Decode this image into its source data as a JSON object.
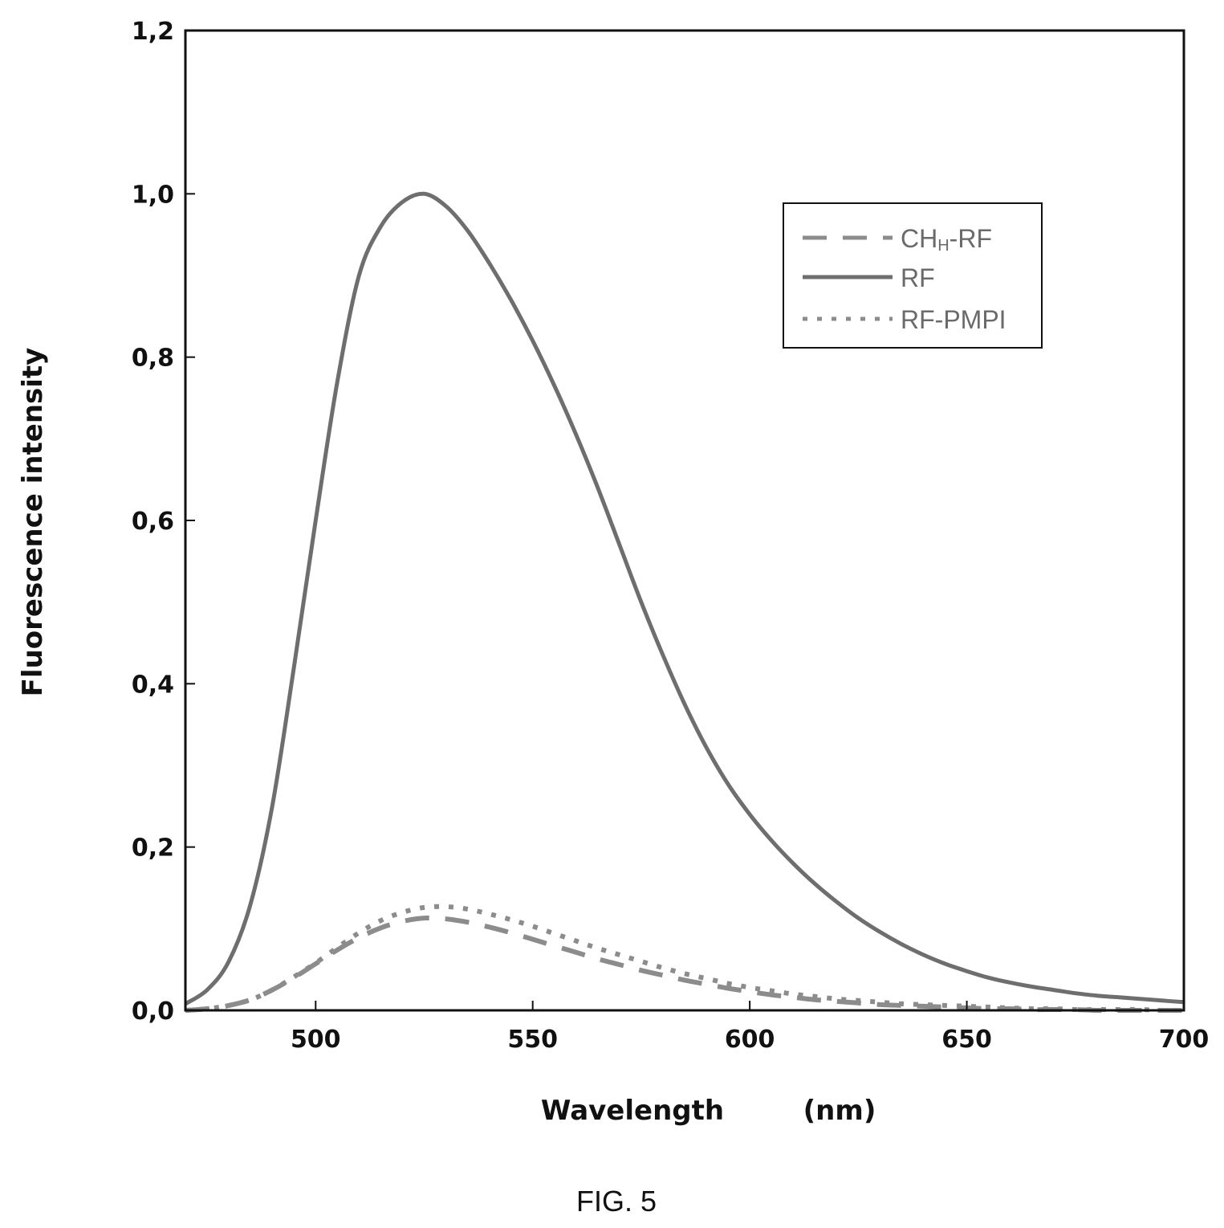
{
  "chart_data": {
    "type": "line",
    "xlabel": "Wavelength",
    "xunit": "(nm)",
    "ylabel": "Fluorescence intensity",
    "xlim": [
      470,
      700
    ],
    "ylim": [
      0,
      1.2
    ],
    "xticks": [
      500,
      550,
      600,
      650,
      700
    ],
    "yticks": [
      0,
      0.2,
      0.4,
      0.6,
      0.8,
      1.0,
      1.2
    ],
    "ytick_labels": [
      "0,0",
      "0,2",
      "0,4",
      "0,6",
      "0,8",
      "1,0",
      "1,2"
    ],
    "legend_position": "top-right",
    "grid": false,
    "series": [
      {
        "name": "CHH-RF",
        "name_main": "CH",
        "name_sub": "H",
        "name_tail": "-RF",
        "style": "dashed",
        "color": "#8c8c8c",
        "x": [
          470,
          475,
          480,
          485,
          490,
          495,
          500,
          505,
          510,
          515,
          520,
          525,
          530,
          535,
          540,
          545,
          550,
          555,
          560,
          565,
          570,
          575,
          580,
          585,
          590,
          595,
          600,
          605,
          610,
          615,
          620,
          625,
          630,
          635,
          640,
          645,
          650,
          655,
          660,
          665,
          670,
          675,
          680,
          685,
          690,
          695,
          700
        ],
        "y": [
          0.0,
          0.002,
          0.006,
          0.013,
          0.025,
          0.04,
          0.057,
          0.074,
          0.089,
          0.101,
          0.109,
          0.113,
          0.112,
          0.108,
          0.102,
          0.095,
          0.087,
          0.079,
          0.071,
          0.063,
          0.056,
          0.049,
          0.043,
          0.037,
          0.032,
          0.027,
          0.023,
          0.019,
          0.016,
          0.013,
          0.011,
          0.009,
          0.007,
          0.006,
          0.005,
          0.004,
          0.003,
          0.002,
          0.002,
          0.001,
          0.001,
          0.001,
          0.0,
          0.0,
          0.0,
          0.0,
          0.0
        ]
      },
      {
        "name": "RF",
        "style": "solid",
        "color": "#6e6e6e",
        "x": [
          470,
          475,
          480,
          485,
          490,
          495,
          500,
          505,
          510,
          515,
          520,
          525,
          530,
          535,
          540,
          545,
          550,
          555,
          560,
          565,
          570,
          575,
          580,
          585,
          590,
          595,
          600,
          605,
          610,
          615,
          620,
          625,
          630,
          635,
          640,
          645,
          650,
          655,
          660,
          665,
          670,
          675,
          680,
          685,
          690,
          695,
          700
        ],
        "y": [
          0.008,
          0.025,
          0.06,
          0.13,
          0.25,
          0.42,
          0.6,
          0.77,
          0.9,
          0.96,
          0.99,
          1.0,
          0.985,
          0.955,
          0.915,
          0.87,
          0.82,
          0.765,
          0.705,
          0.64,
          0.57,
          0.5,
          0.435,
          0.375,
          0.322,
          0.277,
          0.24,
          0.208,
          0.18,
          0.155,
          0.133,
          0.113,
          0.096,
          0.081,
          0.068,
          0.057,
          0.048,
          0.04,
          0.034,
          0.029,
          0.025,
          0.021,
          0.018,
          0.016,
          0.014,
          0.012,
          0.01
        ]
      },
      {
        "name": "RF-PMPI",
        "style": "dotted",
        "color": "#8c8c8c",
        "x": [
          470,
          475,
          480,
          485,
          490,
          495,
          500,
          505,
          510,
          515,
          520,
          525,
          530,
          535,
          540,
          545,
          550,
          555,
          560,
          565,
          570,
          575,
          580,
          585,
          590,
          595,
          600,
          605,
          610,
          615,
          620,
          625,
          630,
          635,
          640,
          645,
          650,
          655,
          660,
          665,
          670,
          675,
          680,
          685,
          690,
          695,
          700
        ],
        "y": [
          0.0,
          0.002,
          0.006,
          0.013,
          0.025,
          0.041,
          0.058,
          0.077,
          0.095,
          0.11,
          0.12,
          0.126,
          0.127,
          0.124,
          0.118,
          0.111,
          0.103,
          0.094,
          0.085,
          0.076,
          0.068,
          0.06,
          0.052,
          0.045,
          0.039,
          0.033,
          0.028,
          0.024,
          0.02,
          0.017,
          0.014,
          0.012,
          0.01,
          0.008,
          0.007,
          0.006,
          0.005,
          0.004,
          0.003,
          0.002,
          0.002,
          0.001,
          0.001,
          0.001,
          0.001,
          0.0,
          0.0
        ]
      }
    ]
  },
  "caption": "FIG. 5"
}
